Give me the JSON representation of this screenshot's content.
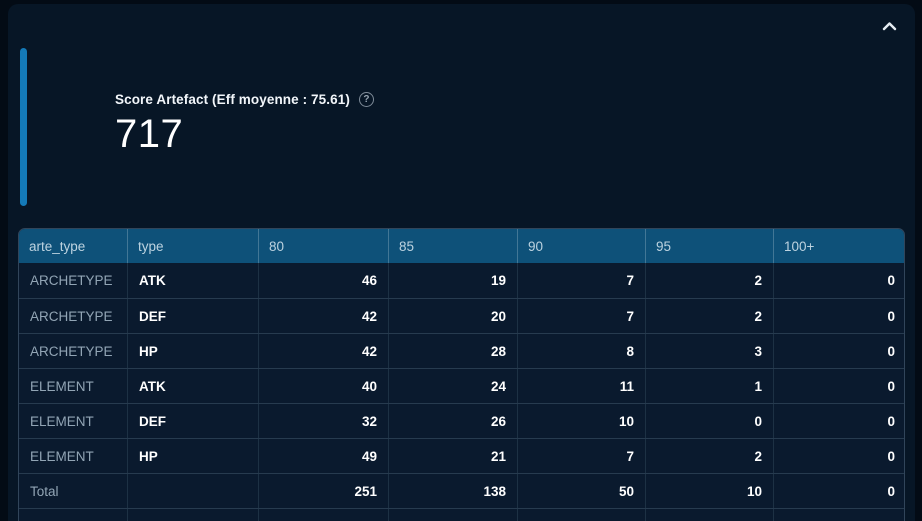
{
  "panel": {
    "collapse_icon": "chevron-up",
    "accent_color": "#147ab8"
  },
  "scorecard": {
    "title": "Score Artefact (Eff moyenne : 75.61)",
    "value": "717",
    "help_icon": "?"
  },
  "table": {
    "columns": [
      "arte_type",
      "type",
      "80",
      "85",
      "90",
      "95",
      "100+"
    ],
    "rows": [
      [
        "ARCHETYPE",
        "ATK",
        "46",
        "19",
        "7",
        "2",
        "0"
      ],
      [
        "ARCHETYPE",
        "DEF",
        "42",
        "20",
        "7",
        "2",
        "0"
      ],
      [
        "ARCHETYPE",
        "HP",
        "42",
        "28",
        "8",
        "3",
        "0"
      ],
      [
        "ELEMENT",
        "ATK",
        "40",
        "24",
        "11",
        "1",
        "0"
      ],
      [
        "ELEMENT",
        "DEF",
        "32",
        "26",
        "10",
        "0",
        "0"
      ],
      [
        "ELEMENT",
        "HP",
        "49",
        "21",
        "7",
        "2",
        "0"
      ],
      [
        "Total",
        "",
        "251",
        "138",
        "50",
        "10",
        "0"
      ]
    ]
  },
  "colors": {
    "page_background": "#030b15",
    "panel_background": "#071626",
    "table_header_background": "#0e5179",
    "row_background": "#0a1a2e",
    "accent_bar": "#147ab8",
    "header_text": "#bdd3e0",
    "label_text": "#92a5b5",
    "value_text": "#ffffff"
  }
}
